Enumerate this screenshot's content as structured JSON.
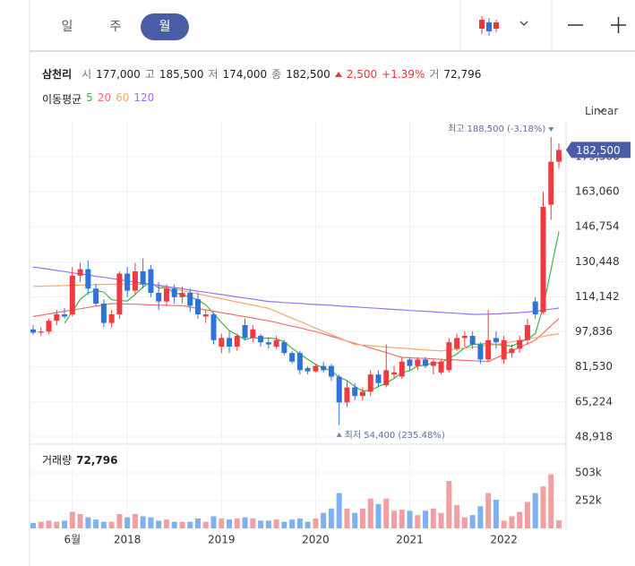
{
  "toolbar": {
    "tabs": [
      "일",
      "주",
      "월"
    ]
  },
  "quote": {
    "name": "삼천리",
    "open_label": "시",
    "open": "177,000",
    "high_label": "고",
    "high": "185,500",
    "low_label": "저",
    "low": "174,000",
    "close_label": "종",
    "close": "182,500",
    "change": "2,500",
    "change_pct": "+1.39%",
    "volume_label": "거",
    "volume": "72,796"
  },
  "ma_title": "이동평균",
  "scale_label": "Linear",
  "chart_data": {
    "type": "candlestick",
    "categories": [
      null,
      null,
      null,
      null,
      null,
      "6월",
      null,
      null,
      null,
      null,
      null,
      null,
      "2018",
      null,
      null,
      null,
      null,
      null,
      null,
      null,
      null,
      null,
      null,
      null,
      "2019",
      null,
      null,
      null,
      null,
      null,
      null,
      null,
      null,
      null,
      null,
      null,
      "2020",
      null,
      null,
      null,
      null,
      null,
      null,
      null,
      null,
      null,
      null,
      null,
      "2021",
      null,
      null,
      null,
      null,
      null,
      null,
      null,
      null,
      null,
      null,
      null,
      "2022",
      null,
      null,
      null,
      null,
      null,
      null,
      null
    ],
    "open": [
      99000,
      97500,
      98000,
      103000,
      106000,
      106000,
      124000,
      127000,
      118000,
      111000,
      102000,
      106000,
      125000,
      117000,
      126000,
      127000,
      116000,
      112000,
      118000,
      114000,
      116000,
      113000,
      105000,
      106000,
      91000,
      95000,
      91000,
      101000,
      95000,
      96000,
      93000,
      91000,
      93000,
      88000,
      88000,
      81000,
      79500,
      82000,
      82000,
      77000,
      65000,
      72000,
      68000,
      70000,
      78000,
      73000,
      78000,
      77000,
      85000,
      82000,
      85000,
      82000,
      79000,
      80000,
      90000,
      95000,
      96000,
      92000,
      85000,
      95000,
      85000,
      88000,
      90000,
      94000,
      112000,
      107000,
      157000,
      177000
    ],
    "high": [
      101000,
      100000,
      104000,
      108000,
      109000,
      128000,
      130000,
      131000,
      120000,
      113000,
      108000,
      126000,
      128000,
      130000,
      132000,
      129000,
      121000,
      120000,
      120000,
      119000,
      118000,
      116000,
      108000,
      107000,
      97000,
      98000,
      97000,
      104000,
      101000,
      97000,
      95000,
      96000,
      94000,
      89000,
      89000,
      82000,
      83000,
      84000,
      83000,
      78000,
      75000,
      74000,
      72000,
      80000,
      80000,
      92000,
      82000,
      86000,
      86000,
      86000,
      86000,
      85000,
      85000,
      95000,
      97000,
      98000,
      98000,
      93000,
      108000,
      98000,
      96000,
      92000,
      96000,
      104000,
      114000,
      163000,
      188500,
      185500
    ],
    "low": [
      96500,
      96000,
      97000,
      101000,
      104000,
      105000,
      121000,
      115000,
      110000,
      100000,
      100000,
      104000,
      114000,
      115000,
      118000,
      114000,
      108000,
      110000,
      111000,
      111000,
      107000,
      104000,
      102000,
      92000,
      88000,
      88000,
      89000,
      94000,
      93000,
      91000,
      90000,
      90000,
      87000,
      83000,
      78000,
      78000,
      79000,
      79000,
      75000,
      54400,
      63000,
      66000,
      66000,
      68000,
      72000,
      72000,
      76000,
      76000,
      80000,
      80000,
      81000,
      78000,
      78000,
      79000,
      89000,
      91000,
      90000,
      83000,
      84000,
      90000,
      83000,
      86000,
      88000,
      92000,
      104000,
      106000,
      150000,
      174000
    ],
    "close": [
      97500,
      98000,
      103000,
      106000,
      105000,
      124000,
      127000,
      118000,
      111000,
      102000,
      106000,
      125000,
      117000,
      126000,
      120000,
      116000,
      112000,
      118000,
      114000,
      116000,
      110000,
      106000,
      106000,
      94000,
      95000,
      91000,
      96000,
      95000,
      99000,
      93000,
      92000,
      94000,
      88000,
      84000,
      80000,
      79500,
      82000,
      80000,
      77000,
      65000,
      72000,
      68000,
      70000,
      78000,
      74000,
      80000,
      79000,
      84000,
      82000,
      85000,
      82000,
      84000,
      84000,
      93000,
      95000,
      96000,
      92000,
      85000,
      94000,
      93000,
      94000,
      90000,
      94000,
      101000,
      106000,
      156000,
      177000,
      182500
    ],
    "up_color": "#ef3b3f",
    "down_color": "#2f72d8",
    "series": [
      {
        "name": "5",
        "color": "#3cb44b",
        "values": [
          null,
          null,
          null,
          null,
          101900,
          107200,
          113000,
          116000,
          117000,
          116400,
          112800,
          112400,
          112200,
          115200,
          118800,
          120800,
          118200,
          118400,
          116000,
          115200,
          114000,
          112800,
          110400,
          106400,
          102200,
          98400,
          96400,
          94200,
          95200,
          94800,
          95000,
          94600,
          93200,
          90200,
          87600,
          85100,
          82700,
          81100,
          79700,
          76700,
          75200,
          72400,
          70400,
          70600,
          72400,
          74000,
          76200,
          79000,
          79800,
          82000,
          82400,
          83400,
          83400,
          85600,
          87600,
          90400,
          92000,
          92200,
          92400,
          92000,
          91600,
          91200,
          93000,
          94400,
          97000,
          109400,
          126800,
          144500
        ]
      },
      {
        "name": "20",
        "color": "#f07070",
        "values": [
          105000,
          105600,
          106200,
          106800,
          107400,
          108000,
          108600,
          109200,
          109800,
          110400,
          111000,
          110900,
          110800,
          110700,
          110600,
          110400,
          110300,
          110200,
          110100,
          110000,
          109400,
          108700,
          108100,
          107500,
          106800,
          106200,
          105500,
          104900,
          104300,
          103600,
          103000,
          102200,
          101300,
          100500,
          99700,
          98800,
          98000,
          96900,
          95800,
          94700,
          93600,
          92500,
          91500,
          90400,
          89300,
          88200,
          87100,
          86000,
          85800,
          85600,
          85500,
          85300,
          85100,
          85000,
          84800,
          84600,
          84400,
          84200,
          84000,
          85700,
          87300,
          89000,
          90700,
          92300,
          94000,
          97300,
          100700,
          104000
        ]
      },
      {
        "name": "60",
        "color": "#f4a865",
        "values": [
          119000,
          119100,
          119200,
          119300,
          119400,
          119500,
          119600,
          119700,
          119800,
          119900,
          120000,
          120000,
          120000,
          120000,
          120000,
          120000,
          119300,
          118500,
          117800,
          117000,
          116300,
          115500,
          114800,
          114000,
          113300,
          112500,
          111800,
          111000,
          110300,
          109500,
          108800,
          107300,
          105700,
          104200,
          102700,
          101200,
          99600,
          98100,
          96600,
          95100,
          93500,
          92000,
          91700,
          91400,
          91100,
          90800,
          90500,
          90300,
          90000,
          89700,
          89400,
          89200,
          89000,
          89400,
          89900,
          90300,
          90700,
          91100,
          91600,
          92000,
          92600,
          93200,
          93900,
          94500,
          95100,
          95700,
          96400,
          97000
        ]
      },
      {
        "name": "120",
        "color": "#a070f0",
        "values": [
          128000,
          127500,
          127000,
          126400,
          125900,
          125300,
          124800,
          124300,
          123700,
          123200,
          122700,
          122100,
          121600,
          121100,
          120500,
          120000,
          119500,
          118900,
          118400,
          117900,
          117300,
          116800,
          116300,
          115700,
          115200,
          114700,
          114100,
          113600,
          113100,
          112500,
          112000,
          111800,
          111500,
          111300,
          111100,
          110800,
          110600,
          110400,
          110200,
          109900,
          109700,
          109500,
          109200,
          109000,
          108800,
          108500,
          108300,
          108100,
          107800,
          107600,
          107400,
          107200,
          106900,
          106700,
          106500,
          106200,
          106000,
          106000,
          106100,
          106200,
          106400,
          106600,
          106800,
          107100,
          107400,
          107900,
          108400,
          108900
        ]
      }
    ],
    "ylim": [
      46000,
      196000
    ],
    "yticks": [
      {
        "value": 48918,
        "label": "48,918"
      },
      {
        "value": 65224,
        "label": "65,224"
      },
      {
        "value": 81530,
        "label": "81,530"
      },
      {
        "value": 97836,
        "label": "97,836"
      },
      {
        "value": 114142,
        "label": "114,142"
      },
      {
        "value": 130448,
        "label": "130,448"
      },
      {
        "value": 146754,
        "label": "146,754"
      },
      {
        "value": 163060,
        "label": "163,060"
      },
      {
        "value": 179366,
        "label": "179,366"
      }
    ],
    "grid": true,
    "max_label": "최고 188,500 (-3.18%)",
    "min_label": "최저 54,400 (235.48%)",
    "last_price_label": "182,500",
    "volume": {
      "title": "거래량",
      "value_label": "72,796",
      "up_color": "#f0a0a2",
      "down_color": "#7fb1f2",
      "values": [
        50000,
        60000,
        70000,
        60000,
        70000,
        150000,
        130000,
        100000,
        80000,
        60000,
        60000,
        130000,
        100000,
        130000,
        110000,
        100000,
        70000,
        80000,
        60000,
        60000,
        60000,
        90000,
        60000,
        110000,
        90000,
        80000,
        90000,
        100000,
        90000,
        70000,
        70000,
        80000,
        60000,
        80000,
        90000,
        60000,
        90000,
        140000,
        180000,
        320000,
        180000,
        140000,
        180000,
        270000,
        220000,
        270000,
        160000,
        170000,
        160000,
        120000,
        160000,
        180000,
        140000,
        430000,
        210000,
        100000,
        120000,
        200000,
        320000,
        260000,
        70000,
        110000,
        150000,
        240000,
        320000,
        380000,
        490000,
        72796
      ],
      "ylim": [
        0,
        730000
      ],
      "yticks": [
        {
          "value": 252000,
          "label": "252k"
        },
        {
          "value": 503000,
          "label": "503k"
        }
      ]
    }
  }
}
